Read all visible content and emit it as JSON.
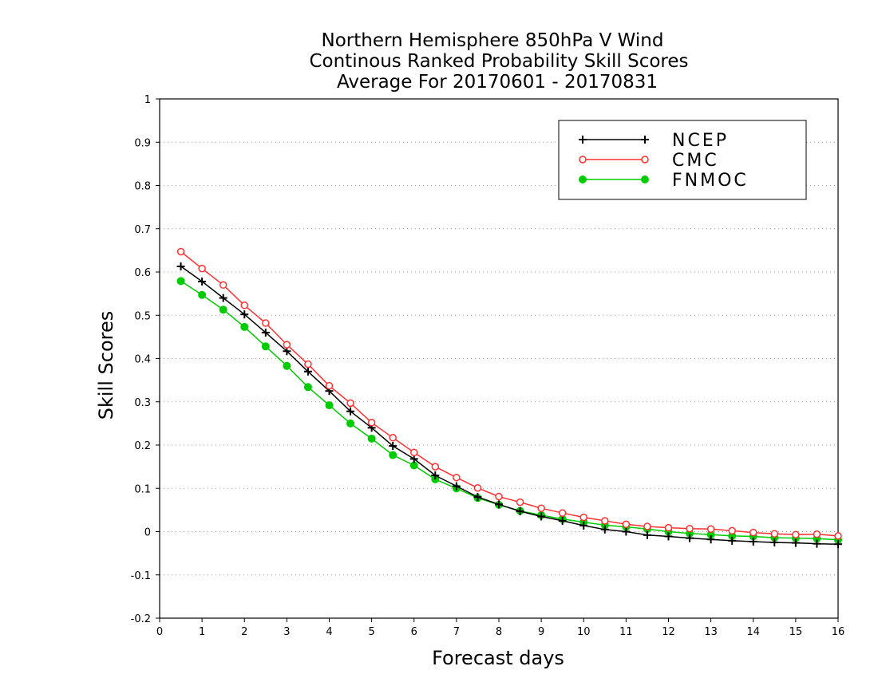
{
  "chart_data": {
    "type": "line",
    "title": [
      "Northern Hemisphere 850hPa V Wind",
      "Continous Ranked Probability Skill Scores",
      "Average For 20170601 - 20170831"
    ],
    "xlabel": "Forecast days",
    "ylabel": "Skill Scores",
    "xlim": [
      0,
      16
    ],
    "ylim": [
      -0.2,
      1
    ],
    "xticks": [
      "0",
      "1",
      "2",
      "3",
      "4",
      "5",
      "6",
      "7",
      "8",
      "9",
      "10",
      "11",
      "12",
      "13",
      "14",
      "15",
      "16"
    ],
    "yticks": [
      "-0.2",
      "-0.1",
      "0",
      "0.1",
      "0.2",
      "0.3",
      "0.4",
      "0.5",
      "0.6",
      "0.7",
      "0.8",
      "0.9",
      "1"
    ],
    "grid": "horizontal dotted",
    "legend_position": "top-right",
    "x": [
      0.5,
      1,
      1.5,
      2,
      2.5,
      3,
      3.5,
      4,
      4.5,
      5,
      5.5,
      6,
      6.5,
      7,
      7.5,
      8,
      8.5,
      9,
      9.5,
      10,
      10.5,
      11,
      11.5,
      12,
      12.5,
      13,
      13.5,
      14,
      14.5,
      15,
      15.5,
      16
    ],
    "series": [
      {
        "name": "NCEP",
        "color": "#000000",
        "marker": "plus",
        "values": [
          0.613,
          0.578,
          0.54,
          0.502,
          0.46,
          0.417,
          0.37,
          0.325,
          0.278,
          0.24,
          0.198,
          0.168,
          0.13,
          0.105,
          0.08,
          0.063,
          0.047,
          0.035,
          0.025,
          0.014,
          0.005,
          0.0,
          -0.008,
          -0.011,
          -0.015,
          -0.018,
          -0.021,
          -0.023,
          -0.025,
          -0.026,
          -0.028,
          -0.029
        ]
      },
      {
        "name": "CMC",
        "color": "#ff3030",
        "marker": "open-circle",
        "values": [
          0.647,
          0.608,
          0.57,
          0.523,
          0.482,
          0.432,
          0.387,
          0.337,
          0.297,
          0.252,
          0.217,
          0.183,
          0.15,
          0.125,
          0.101,
          0.081,
          0.068,
          0.054,
          0.043,
          0.033,
          0.025,
          0.017,
          0.012,
          0.009,
          0.007,
          0.006,
          0.002,
          -0.002,
          -0.005,
          -0.007,
          -0.006,
          -0.01
        ]
      },
      {
        "name": "FNMOC",
        "color": "#00cc00",
        "marker": "filled-circle",
        "values": [
          0.579,
          0.547,
          0.513,
          0.473,
          0.428,
          0.383,
          0.334,
          0.292,
          0.25,
          0.215,
          0.177,
          0.153,
          0.121,
          0.1,
          0.078,
          0.062,
          0.048,
          0.038,
          0.029,
          0.022,
          0.015,
          0.011,
          0.006,
          0.0,
          -0.004,
          -0.007,
          -0.01,
          -0.011,
          -0.014,
          -0.015,
          -0.016,
          -0.019
        ]
      }
    ]
  }
}
